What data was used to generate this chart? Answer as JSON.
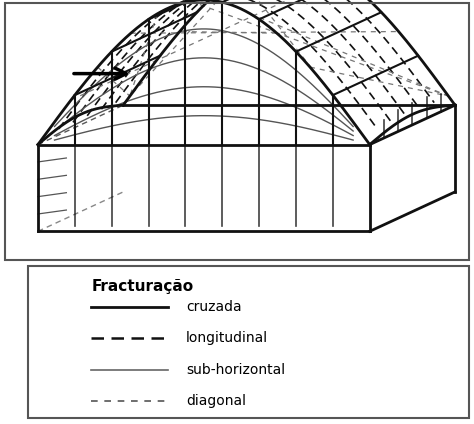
{
  "legend_title": "Fracturação",
  "legend_items": [
    {
      "label": "cruzada",
      "linestyle": "-",
      "linewidth": 2.0,
      "color": "#111111",
      "dashes": null
    },
    {
      "label": "longitudinal",
      "linestyle": "--",
      "linewidth": 1.8,
      "color": "#111111",
      "dashes": [
        5,
        3
      ]
    },
    {
      "label": "sub-horizontal",
      "linestyle": "-",
      "linewidth": 1.2,
      "color": "#666666",
      "dashes": null
    },
    {
      "label": "diagonal",
      "linestyle": "--",
      "linewidth": 1.2,
      "color": "#555555",
      "dashes": [
        4,
        4
      ]
    }
  ],
  "background_color": "#ffffff",
  "col_main": "#111111",
  "col_sub": "#555555",
  "col_diag": "#777777"
}
